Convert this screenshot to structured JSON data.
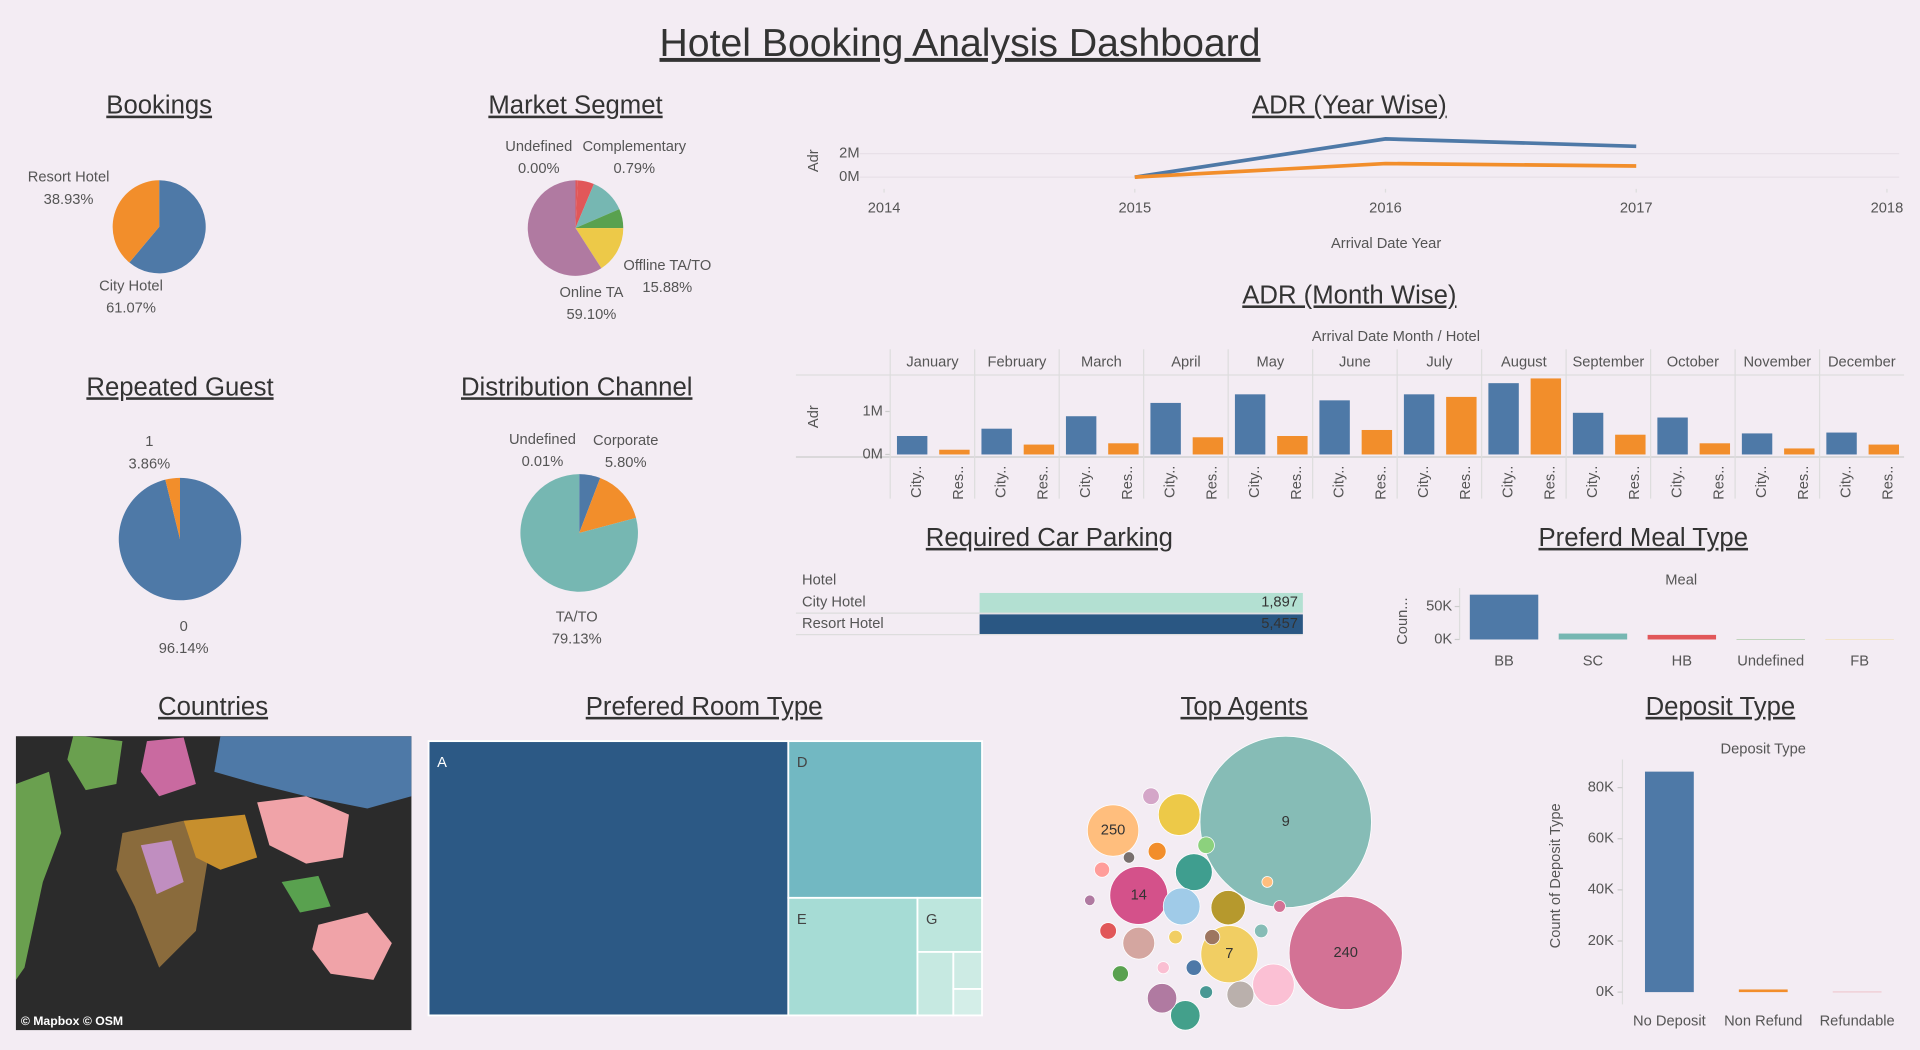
{
  "title": "Hotel Booking Analysis Dashboard",
  "chart_data": [
    {
      "type": "pie",
      "title": "Bookings",
      "categories": [
        "City Hotel",
        "Resort Hotel"
      ],
      "values": [
        61.07,
        38.93
      ],
      "value_labels": [
        "61.07%",
        "38.93%"
      ],
      "colors": [
        "#4e79a7",
        "#f28e2b"
      ]
    },
    {
      "type": "pie",
      "title": "Market Segmet",
      "categories": [
        "Undefined",
        "Complementary",
        null,
        null,
        null,
        "Offline TA/TO",
        "Online TA"
      ],
      "values": [
        0,
        0.79,
        5.5,
        12.23,
        6.5,
        15.88,
        59.1
      ],
      "value_labels": [
        "0.00%",
        "0.79%",
        null,
        null,
        null,
        "15.88%",
        "59.10%"
      ],
      "colors": [
        "#9c755f",
        "#e15759",
        "#e15759",
        "#76b7b2",
        "#59a14f",
        "#edc948",
        "#b07aa1"
      ]
    },
    {
      "type": "pie",
      "title": "Repeated Guest",
      "categories": [
        "0",
        "1"
      ],
      "values": [
        96.14,
        3.86
      ],
      "value_labels": [
        "96.14%",
        "3.86%"
      ],
      "colors": [
        "#4e79a7",
        "#f28e2b"
      ]
    },
    {
      "type": "pie",
      "title": "Distribution Channel ",
      "categories": [
        "Undefined",
        "Corporate",
        null,
        "TA/TO"
      ],
      "values": [
        0.01,
        5.8,
        15.06,
        79.13
      ],
      "value_labels": [
        "0.01%",
        "5.80%",
        null,
        "79.13%"
      ],
      "colors": [
        "#59a14f",
        "#4e79a7",
        "#f28e2b",
        "#76b7b2"
      ]
    },
    {
      "type": "line",
      "title": "ADR (Year Wise)",
      "x": [
        2015,
        2016,
        2017
      ],
      "xlim": [
        2014,
        2018
      ],
      "xticks": [
        2014,
        2015,
        2016,
        2017,
        2018
      ],
      "ylim": [
        -1000000,
        3800000
      ],
      "yticks": [
        {
          "value": 0,
          "label": "0M"
        },
        {
          "value": 2000000,
          "label": "2M"
        }
      ],
      "xlabel": "Arrival Date Year",
      "ylabel": "Adr",
      "series": [
        {
          "color": "#4e79a7",
          "values": [
            0,
            3260000,
            2630000
          ]
        },
        {
          "color": "#f28e2b",
          "values": [
            0,
            1160000,
            950000
          ]
        }
      ]
    },
    {
      "type": "grouped_bar",
      "title": "ADR (Month Wise)",
      "header": "Arrival Date Month / Hotel",
      "ylabel": "Adr",
      "categories": [
        "January",
        "February",
        "March",
        "April",
        "May",
        "June",
        "July",
        "August",
        "September",
        "October",
        "November",
        "December"
      ],
      "ylim": [
        -60000,
        1850000
      ],
      "yticks": [
        {
          "value": 0,
          "label": "0M"
        },
        {
          "value": 1000000,
          "label": "1M"
        }
      ],
      "series": [
        {
          "name": "City..",
          "color": "#4e79a7",
          "values": [
            430000,
            600000,
            890000,
            1200000,
            1400000,
            1260000,
            1400000,
            1660000,
            970000,
            860000,
            490000,
            510000
          ]
        },
        {
          "name": "Res..",
          "color": "#f28e2b",
          "values": [
            110000,
            230000,
            260000,
            400000,
            430000,
            570000,
            1340000,
            1770000,
            460000,
            260000,
            140000,
            230000
          ]
        }
      ]
    },
    {
      "type": "highlight_table",
      "title": "Required Car Parking ",
      "header": "Hotel",
      "categories": [
        "City Hotel",
        "Resort Hotel"
      ],
      "values": [
        1897,
        5457
      ],
      "value_labels": [
        "1,897",
        "5,457"
      ],
      "colors": [
        "#b3e0d2",
        "#2a5783"
      ]
    },
    {
      "type": "bar",
      "title": "Preferd Meal Type",
      "header": "Meal",
      "ylabel": "Coun...",
      "categories": [
        "BB",
        "SC",
        "HB",
        "Undefined",
        "FB"
      ],
      "values": [
        68000,
        9000,
        7000,
        500,
        360
      ],
      "colors": [
        "#4e79a7",
        "#76b7b2",
        "#e15759",
        "#59a14f",
        "#edc948"
      ],
      "ylim": [
        0,
        78000
      ],
      "yticks": [
        {
          "value": 0,
          "label": "0K"
        },
        {
          "value": 50000,
          "label": "50K"
        }
      ]
    },
    {
      "type": "map",
      "title": "Countries",
      "attribution": "© Mapbox © OSM"
    },
    {
      "type": "treemap",
      "title": "Prefered Room Type",
      "categories": [
        "A",
        "D",
        "E",
        "G",
        null,
        null,
        null
      ],
      "values": [
        65,
        20,
        10,
        2.3,
        1.5,
        0.7,
        0.5
      ],
      "colors": [
        "#2c5985",
        "#72b8c2",
        "#a6dcd5",
        "#bde6dd",
        "#c6e9e1",
        "#cdebe4",
        "#d4eee8"
      ]
    },
    {
      "type": "bubble",
      "title": "Top Agents",
      "categories": [
        "9",
        "240",
        "7",
        "14",
        "250",
        null,
        null,
        null,
        null,
        null,
        null,
        null,
        null,
        null,
        null,
        null,
        null,
        null,
        null,
        null,
        null,
        null,
        null,
        null,
        null,
        null,
        null,
        null,
        null,
        null
      ],
      "values": [
        31961,
        13922,
        3539,
        3640,
        2870,
        1890,
        1472,
        1472,
        1282,
        1890,
        942,
        942,
        1105,
        791,
        300,
        350,
        300,
        250,
        300,
        280,
        260,
        250,
        200,
        200,
        150,
        180,
        160,
        140,
        130,
        120
      ],
      "colors": [
        "#86bcb6",
        "#d37295",
        "#f1ce63",
        "#d4518a",
        "#ffbe7d",
        "#edc948",
        "#3f9e8f",
        "#a0cbe8",
        "#b6992d",
        "#fbc0d4",
        "#43a08b",
        "#b07aa1",
        "#d4a6a0",
        "#bab0ac",
        "#d4a6c8",
        "#f28e2b",
        "#8cd17d",
        "#ff9d9a",
        "#e15759",
        "#59a14f",
        "#4e79a7",
        "#9d7660",
        "#f1ce63",
        "#86bcb6",
        "#d37295",
        "#499894",
        "#fabfd2",
        "#79706e",
        "#ffbe7d",
        "#b07aa1"
      ]
    },
    {
      "type": "bar",
      "title": "Deposit Type",
      "header": "Deposit Type",
      "ylabel": "Count of Deposit Type",
      "categories": [
        "No Deposit",
        "Non Refund",
        "Refundable"
      ],
      "values": [
        86251,
        1038,
        107
      ],
      "colors": [
        "#4e79a7",
        "#f28e2b",
        "#e15759"
      ],
      "ylim": [
        -4800,
        91000
      ],
      "yticks": [
        {
          "value": 0,
          "label": "0K"
        },
        {
          "value": 20000,
          "label": "20K"
        },
        {
          "value": 40000,
          "label": "40K"
        },
        {
          "value": 60000,
          "label": "60K"
        },
        {
          "value": 80000,
          "label": "80K"
        }
      ]
    }
  ]
}
